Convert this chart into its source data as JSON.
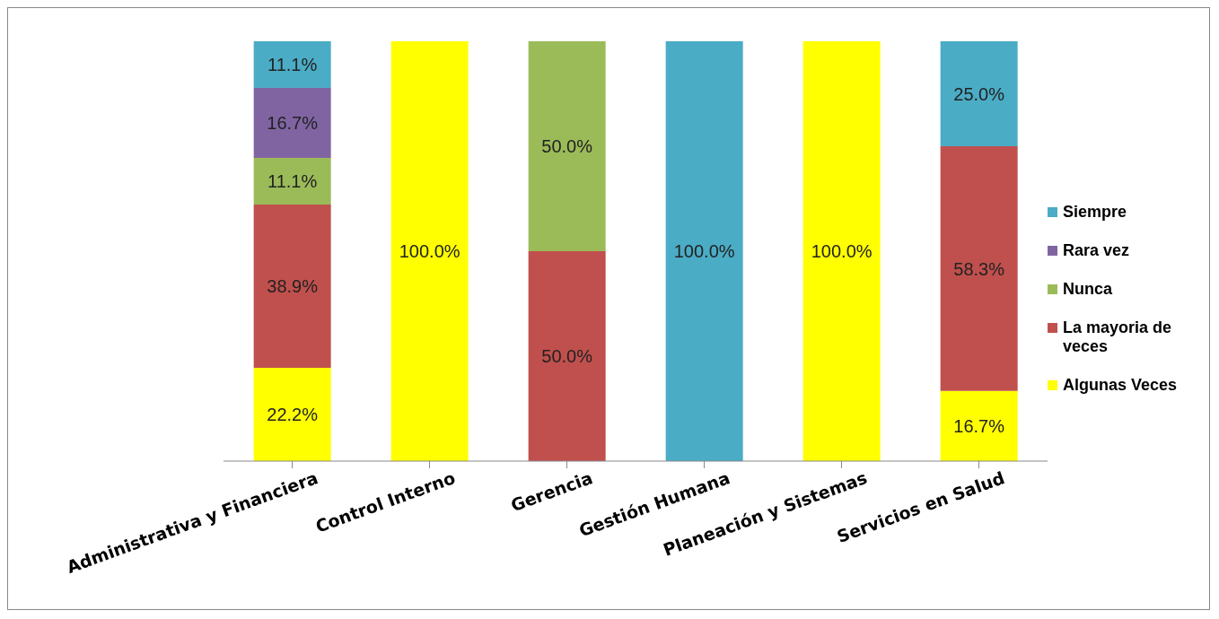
{
  "chart_data": {
    "type": "bar",
    "stacked": true,
    "legend": "right",
    "categories": [
      "Administrativa y Financiera",
      "Control Interno",
      "Gerencia",
      "Gestión Humana",
      "Planeación y Sistemas",
      "Servicios en Salud"
    ],
    "series": [
      {
        "name": "Algunas Veces",
        "color": "#ffff00",
        "values": [
          22.2,
          100.0,
          null,
          null,
          100.0,
          16.7
        ],
        "value_labels": [
          "22.2%",
          "100.0%",
          null,
          null,
          "100.0%",
          "16.7%"
        ]
      },
      {
        "name": "La mayoria de veces",
        "color": "#c0504d",
        "values": [
          38.9,
          null,
          50.0,
          null,
          null,
          58.3
        ],
        "value_labels": [
          "38.9%",
          null,
          "50.0%",
          null,
          null,
          "58.3%"
        ]
      },
      {
        "name": "Nunca",
        "color": "#9bbb59",
        "values": [
          11.1,
          null,
          50.0,
          null,
          null,
          null
        ],
        "value_labels": [
          "11.1%",
          null,
          "50.0%",
          null,
          null,
          null
        ]
      },
      {
        "name": "Rara vez",
        "color": "#8064a2",
        "values": [
          16.7,
          null,
          null,
          null,
          null,
          null
        ],
        "value_labels": [
          "16.7%",
          null,
          null,
          null,
          null,
          null
        ]
      },
      {
        "name": "Siempre",
        "color": "#4bacc6",
        "values": [
          11.1,
          null,
          null,
          100.0,
          null,
          25.0
        ],
        "value_labels": [
          "11.1%",
          null,
          null,
          "100.0%",
          null,
          "25.0%"
        ]
      }
    ]
  }
}
